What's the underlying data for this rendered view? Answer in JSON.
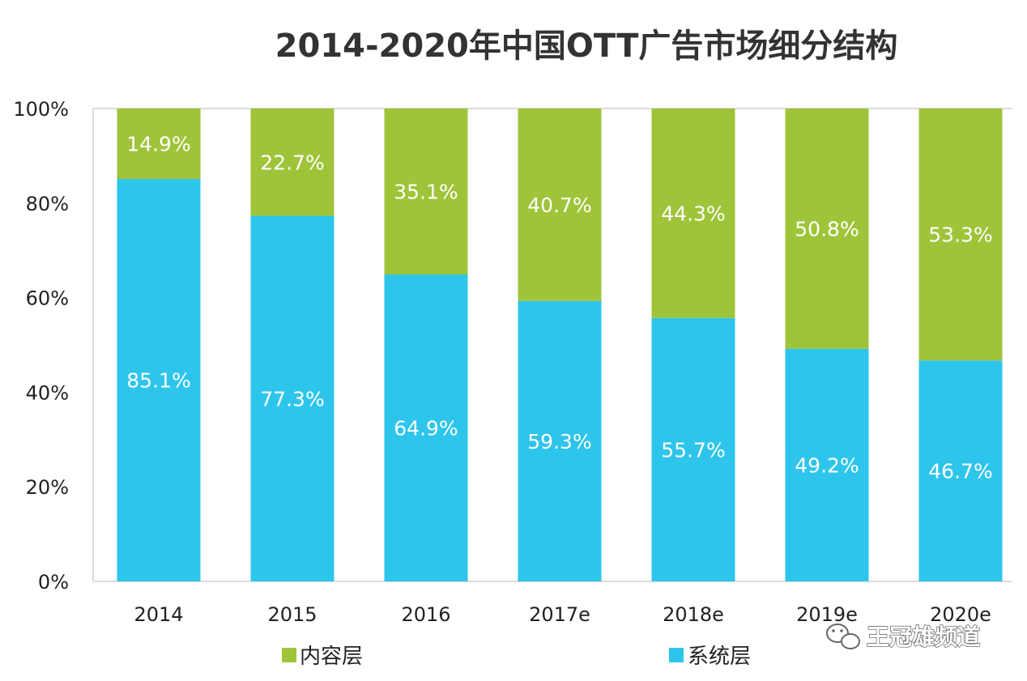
{
  "chart_data": {
    "type": "bar",
    "stacked": true,
    "title": "2014-2020年中国OTT广告市场细分结构",
    "categories": [
      "2014",
      "2015",
      "2016",
      "2017e",
      "2018e",
      "2019e",
      "2020e"
    ],
    "series": [
      {
        "name": "系统层",
        "color": "#2ec5ec",
        "values": [
          85.1,
          77.3,
          64.9,
          59.3,
          55.7,
          49.2,
          46.7
        ],
        "labels": [
          "85.1%",
          "77.3%",
          "64.9%",
          "59.3%",
          "55.7%",
          "49.2%",
          "46.7%"
        ]
      },
      {
        "name": "内容层",
        "color": "#9fc43a",
        "values": [
          14.9,
          22.7,
          35.1,
          40.7,
          44.3,
          50.8,
          53.3
        ],
        "labels": [
          "14.9%",
          "22.7%",
          "35.1%",
          "40.7%",
          "44.3%",
          "50.8%",
          "53.3%"
        ]
      }
    ],
    "yticks": [
      "0%",
      "20%",
      "40%",
      "60%",
      "80%",
      "100%"
    ],
    "ylim": [
      0,
      100
    ],
    "grid": false,
    "legend": "bottom"
  },
  "legend": [
    {
      "label": "内容层",
      "color": "#9fc43a"
    },
    {
      "label": "系统层",
      "color": "#2ec5ec"
    }
  ],
  "watermark": {
    "text": "王冠雄频道",
    "icon": "wechat-icon"
  }
}
